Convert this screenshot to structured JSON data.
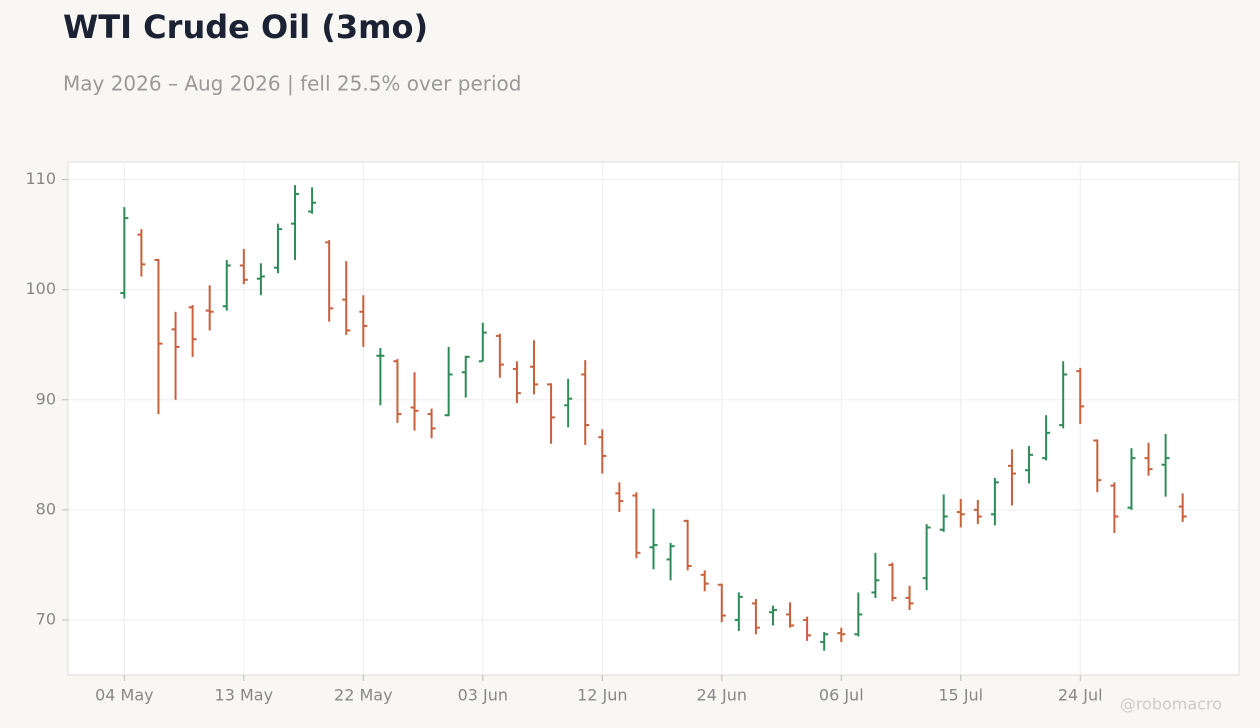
{
  "chart_data": {
    "type": "ohlc",
    "title": "WTI Crude Oil (3mo)",
    "subtitle": "May 2026 – Aug 2026 | fell 25.5% over period",
    "watermark": "@robomacro",
    "categories": [
      "04 May",
      null,
      null,
      null,
      null,
      null,
      null,
      "13 May",
      null,
      null,
      null,
      null,
      null,
      null,
      "22 May",
      null,
      null,
      null,
      null,
      null,
      null,
      "03 Jun",
      null,
      null,
      null,
      null,
      null,
      null,
      "12 Jun",
      null,
      null,
      null,
      null,
      null,
      null,
      "24 Jun",
      null,
      null,
      null,
      null,
      null,
      null,
      "06 Jul",
      null,
      null,
      null,
      null,
      null,
      null,
      "15 Jul",
      null,
      null,
      null,
      null,
      null,
      null,
      "24 Jul",
      null,
      null,
      null,
      null,
      null,
      null
    ],
    "open": [
      99.7,
      105.0,
      102.7,
      96.4,
      98.4,
      98.1,
      98.5,
      102.2,
      101.0,
      102.0,
      106.0,
      107.1,
      104.3,
      99.1,
      98.0,
      94.0,
      93.5,
      89.3,
      88.7,
      88.6,
      92.5,
      93.5,
      95.8,
      92.8,
      93.0,
      91.4,
      89.5,
      92.3,
      86.6,
      81.5,
      81.3,
      76.6,
      75.5,
      79.0,
      74.1,
      73.2,
      70.0,
      71.5,
      70.7,
      70.5,
      70.0,
      68.0,
      68.8,
      68.7,
      72.5,
      75.0,
      72.0,
      73.8,
      78.2,
      79.8,
      80.0,
      79.6,
      84.0,
      83.6,
      84.7,
      87.7,
      92.6,
      86.3,
      82.2,
      80.2,
      84.7,
      84.1,
      80.3
    ],
    "high": [
      107.5,
      105.5,
      102.8,
      98.0,
      98.6,
      100.4,
      102.7,
      103.7,
      102.4,
      106.0,
      109.5,
      109.3,
      104.5,
      102.6,
      99.5,
      94.7,
      93.7,
      92.5,
      89.2,
      94.8,
      94.0,
      97.0,
      96.0,
      93.5,
      95.4,
      91.5,
      91.9,
      93.6,
      87.3,
      82.5,
      81.6,
      80.1,
      77.0,
      79.1,
      74.5,
      73.3,
      72.5,
      71.9,
      71.3,
      71.6,
      70.3,
      68.9,
      69.3,
      72.5,
      76.1,
      75.2,
      73.1,
      78.7,
      81.4,
      81.0,
      80.9,
      82.9,
      85.5,
      85.8,
      88.6,
      93.5,
      92.9,
      86.4,
      82.5,
      85.6,
      86.1,
      86.9,
      81.5
    ],
    "low": [
      99.2,
      101.2,
      88.7,
      90.0,
      93.9,
      96.3,
      98.1,
      100.5,
      99.5,
      101.5,
      102.7,
      106.9,
      97.1,
      95.9,
      94.8,
      89.5,
      87.9,
      87.2,
      86.5,
      88.5,
      90.2,
      93.5,
      92.0,
      89.7,
      90.5,
      86.0,
      87.5,
      85.9,
      83.3,
      79.8,
      75.6,
      74.6,
      73.6,
      74.5,
      72.6,
      69.8,
      69.0,
      68.7,
      69.5,
      69.3,
      68.1,
      67.2,
      68.0,
      68.5,
      72.0,
      71.7,
      70.9,
      72.7,
      78.0,
      78.4,
      78.7,
      78.6,
      80.4,
      82.4,
      84.5,
      87.4,
      87.8,
      81.6,
      77.9,
      80.0,
      83.1,
      81.2,
      78.9
    ],
    "close": [
      106.5,
      102.3,
      95.1,
      94.8,
      95.5,
      98.0,
      102.2,
      100.9,
      101.2,
      105.5,
      108.7,
      107.9,
      98.3,
      96.3,
      96.7,
      94.0,
      88.7,
      89.0,
      87.4,
      92.3,
      93.9,
      96.1,
      93.2,
      90.6,
      91.4,
      88.4,
      90.1,
      87.7,
      84.9,
      80.8,
      76.1,
      76.8,
      76.7,
      74.9,
      73.3,
      70.4,
      72.1,
      69.3,
      70.9,
      69.5,
      68.6,
      68.7,
      68.7,
      70.5,
      73.6,
      72.0,
      71.5,
      78.4,
      79.4,
      79.6,
      79.4,
      82.5,
      83.3,
      85.0,
      87.0,
      92.3,
      89.4,
      82.7,
      79.4,
      84.7,
      83.7,
      84.7,
      79.4
    ],
    "up_color": "#2e8b57",
    "down_color": "#c8603c",
    "ylim": [
      65,
      111.6
    ],
    "yticks": [
      70,
      80,
      90,
      100,
      110
    ],
    "grid": true
  }
}
